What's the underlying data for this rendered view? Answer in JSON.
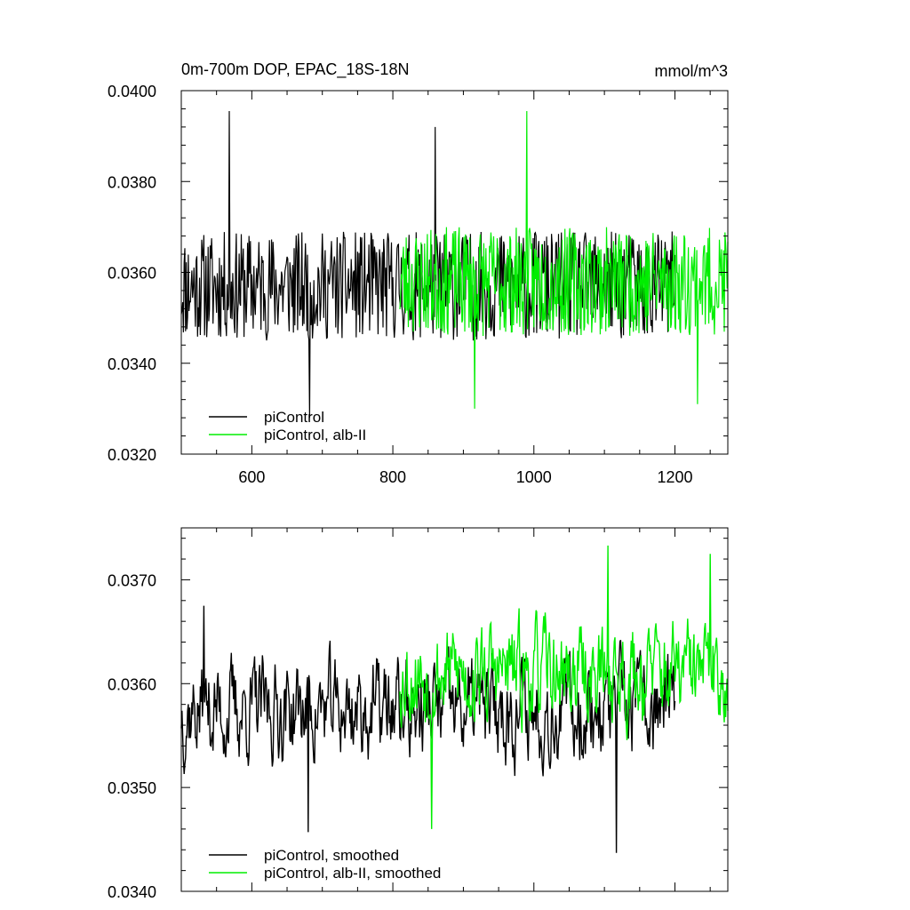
{
  "chart_data": [
    {
      "type": "line",
      "title": "0m-700m DOP, EPAC_18S-18N",
      "units": "mmol/m^3",
      "xlim": [
        500,
        1275
      ],
      "ylim": [
        0.032,
        0.04
      ],
      "xticks": [
        600,
        800,
        1000,
        1200
      ],
      "xtick_labels": [
        "600",
        "800",
        "1000",
        "1200"
      ],
      "yticks": [
        0.032,
        0.034,
        0.036,
        0.038,
        0.04
      ],
      "ytick_labels": [
        "0.0320",
        "0.0340",
        "0.0360",
        "0.0380",
        "0.0400"
      ],
      "legend": "bottom-left",
      "series": [
        {
          "name": "piControl",
          "color": "#000000",
          "x_range": [
            500,
            1200
          ],
          "mean": 0.0357,
          "amplitude": 0.0012,
          "peaks": [
            [
              568,
              0.03955
            ],
            [
              860,
              0.0392
            ],
            [
              682,
              0.0328
            ]
          ],
          "seed": 11
        },
        {
          "name": "piControl, alb-II",
          "color": "#00ee00",
          "x_range": [
            810,
            1275
          ],
          "mean": 0.0358,
          "amplitude": 0.0012,
          "peaks": [
            [
              990,
              0.03955
            ],
            [
              916,
              0.033
            ],
            [
              1232,
              0.0331
            ]
          ],
          "seed": 23
        }
      ]
    },
    {
      "type": "line",
      "xlim": [
        500,
        1275
      ],
      "ylim": [
        0.034,
        0.0375
      ],
      "xticks": [
        600,
        800,
        1000,
        1200
      ],
      "yticks": [
        0.034,
        0.035,
        0.036,
        0.037
      ],
      "ytick_labels": [
        "0.0340",
        "0.0350",
        "0.0360",
        "0.0370"
      ],
      "legend": "bottom-left",
      "series": [
        {
          "name": "piControl, smoothed",
          "color": "#000000",
          "x_range": [
            500,
            1200
          ],
          "mean": 0.03575,
          "amplitude": 0.0004,
          "peaks": [
            [
              532,
              0.03675
            ],
            [
              680,
              0.03457
            ],
            [
              1117,
              0.03437
            ]
          ],
          "seed": 37
        },
        {
          "name": "piControl, alb-II, smoothed",
          "color": "#00ee00",
          "x_range": [
            810,
            1275
          ],
          "mean": 0.0361,
          "amplitude": 0.0004,
          "peaks": [
            [
              1105,
              0.03733
            ],
            [
              1250,
              0.03725
            ],
            [
              855,
              0.0346
            ]
          ],
          "seed": 53
        }
      ]
    }
  ]
}
